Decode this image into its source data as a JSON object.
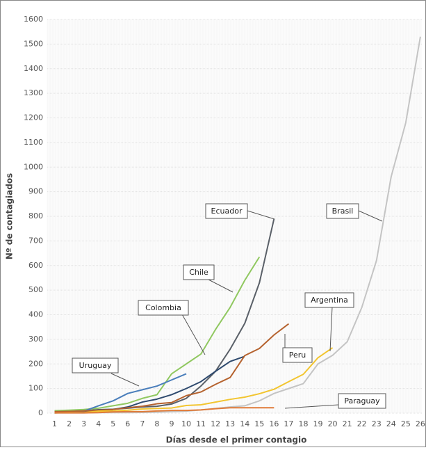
{
  "chart_data": {
    "type": "line",
    "y_label": "Nº de contagiados",
    "x_label": "Días desde el primer contagio",
    "x": [
      1,
      2,
      3,
      4,
      5,
      6,
      7,
      8,
      9,
      10,
      11,
      12,
      13,
      14,
      15,
      16,
      17,
      18,
      19,
      20,
      21,
      22,
      23,
      24,
      25,
      26
    ],
    "xlim": [
      0.5,
      26.1
    ],
    "ylim": [
      0,
      1600
    ],
    "yticks": [
      0,
      100,
      200,
      300,
      400,
      500,
      600,
      700,
      800,
      900,
      1000,
      1100,
      1200,
      1300,
      1400,
      1500,
      1600
    ],
    "grid": true,
    "series": [
      {
        "name": "Brasil",
        "color": "#c4c4c4",
        "values": [
          1,
          1,
          1,
          2,
          2,
          2,
          3,
          4,
          6,
          8,
          13,
          19,
          25,
          30,
          50,
          80,
          100,
          120,
          200,
          235,
          290,
          430,
          620,
          960,
          1180,
          1530
        ]
      },
      {
        "name": "Ecuador",
        "color": "#5a6068",
        "values": [
          7,
          7,
          10,
          14,
          16,
          20,
          25,
          28,
          37,
          60,
          110,
          170,
          260,
          365,
          530,
          790,
          null,
          null,
          null,
          null,
          null,
          null,
          null,
          null,
          null,
          null
        ]
      },
      {
        "name": "Chile",
        "color": "#90c860",
        "values": [
          10,
          12,
          15,
          20,
          30,
          40,
          60,
          75,
          160,
          200,
          240,
          340,
          430,
          540,
          635,
          null,
          null,
          null,
          null,
          null,
          null,
          null,
          null,
          null,
          null,
          null
        ]
      },
      {
        "name": "Colombia",
        "color": "#2f4a6e",
        "values": [
          1,
          3,
          5,
          10,
          15,
          25,
          45,
          57,
          75,
          100,
          128,
          170,
          210,
          231,
          null,
          null,
          null,
          null,
          null,
          null,
          null,
          null,
          null,
          null,
          null,
          null
        ]
      },
      {
        "name": "Uruguay",
        "color": "#4a7ebb",
        "values": [
          4,
          6,
          8,
          30,
          50,
          80,
          95,
          110,
          135,
          160,
          null,
          null,
          null,
          null,
          null,
          null,
          null,
          null,
          null,
          null,
          null,
          null,
          null,
          null,
          null,
          null
        ]
      },
      {
        "name": "Peru",
        "color": "#b5622e",
        "values": [
          6,
          7,
          9,
          11,
          15,
          22,
          28,
          38,
          43,
          71,
          86,
          117,
          145,
          234,
          263,
          318,
          363,
          null,
          null,
          null,
          null,
          null,
          null,
          null,
          null,
          null
        ]
      },
      {
        "name": "Argentina",
        "color": "#f2c530",
        "values": [
          1,
          2,
          2,
          8,
          9,
          12,
          17,
          19,
          21,
          31,
          34,
          45,
          56,
          65,
          79,
          97,
          128,
          158,
          225,
          266,
          null,
          null,
          null,
          null,
          null,
          null
        ]
      },
      {
        "name": "Paraguay",
        "color": "#e07b39",
        "values": [
          1,
          1,
          1,
          2,
          5,
          6,
          6,
          9,
          11,
          11,
          13,
          18,
          22,
          22,
          22,
          22,
          null,
          null,
          null,
          null,
          null,
          null,
          null,
          null,
          null,
          null
        ]
      }
    ]
  }
}
